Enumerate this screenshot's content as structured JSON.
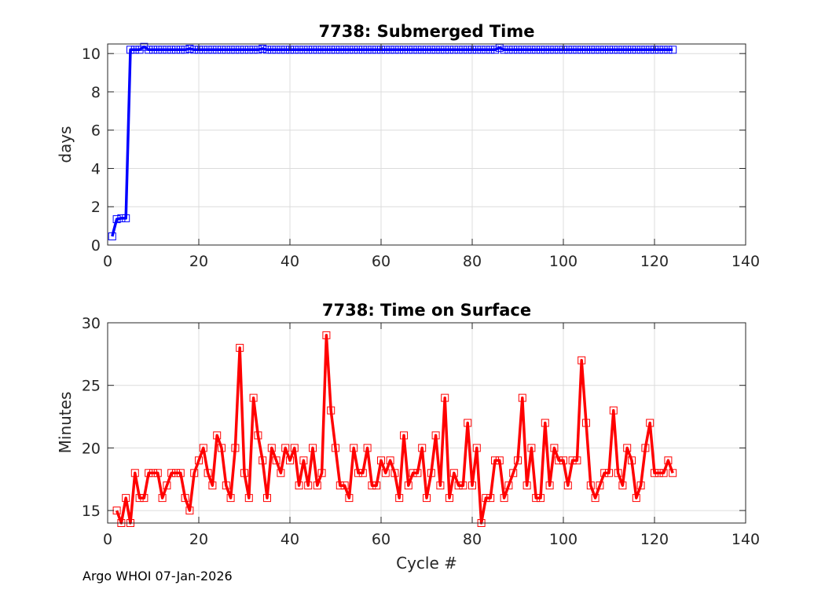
{
  "footer": "Argo WHOI 07-Jan-2026",
  "colors": {
    "top_series": "#0000ff",
    "bottom_series": "#ff0000",
    "grid": "#dcdcdc",
    "axis": "#262626"
  },
  "chart_data": [
    {
      "type": "line",
      "title": "7738: Submerged Time",
      "xlabel": "",
      "ylabel": "days",
      "xlim": [
        0,
        140
      ],
      "ylim": [
        0,
        10.5
      ],
      "xticks": [
        0,
        20,
        40,
        60,
        80,
        100,
        120,
        140
      ],
      "yticks": [
        0,
        2,
        4,
        6,
        8,
        10
      ],
      "grid": true,
      "marker": "square",
      "series": [
        {
          "name": "Submerged Time",
          "color": "#0000ff",
          "x": [
            1,
            2,
            3,
            4,
            5,
            6,
            7,
            8,
            9,
            10,
            11,
            12,
            13,
            14,
            15,
            16,
            17,
            18,
            19,
            20,
            21,
            22,
            23,
            24,
            25,
            26,
            27,
            28,
            29,
            30,
            31,
            32,
            33,
            34,
            35,
            36,
            37,
            38,
            39,
            40,
            41,
            42,
            43,
            44,
            45,
            46,
            47,
            48,
            49,
            50,
            51,
            52,
            53,
            54,
            55,
            56,
            57,
            58,
            59,
            60,
            61,
            62,
            63,
            64,
            65,
            66,
            67,
            68,
            69,
            70,
            71,
            72,
            73,
            74,
            75,
            76,
            77,
            78,
            79,
            80,
            81,
            82,
            83,
            84,
            85,
            86,
            87,
            88,
            89,
            90,
            91,
            92,
            93,
            94,
            95,
            96,
            97,
            98,
            99,
            100,
            101,
            102,
            103,
            104,
            105,
            106,
            107,
            108,
            109,
            110,
            111,
            112,
            113,
            114,
            115,
            116,
            117,
            118,
            119,
            120,
            121,
            122,
            123,
            124
          ],
          "y": [
            0.45,
            1.35,
            1.4,
            1.4,
            10.2,
            10.2,
            10.2,
            10.35,
            10.2,
            10.2,
            10.2,
            10.2,
            10.2,
            10.2,
            10.2,
            10.2,
            10.2,
            10.25,
            10.2,
            10.2,
            10.2,
            10.2,
            10.2,
            10.2,
            10.2,
            10.2,
            10.2,
            10.2,
            10.2,
            10.2,
            10.2,
            10.2,
            10.2,
            10.25,
            10.2,
            10.2,
            10.2,
            10.2,
            10.2,
            10.2,
            10.2,
            10.2,
            10.2,
            10.2,
            10.2,
            10.2,
            10.2,
            10.2,
            10.2,
            10.2,
            10.2,
            10.2,
            10.2,
            10.2,
            10.2,
            10.2,
            10.2,
            10.2,
            10.2,
            10.2,
            10.2,
            10.2,
            10.2,
            10.2,
            10.2,
            10.2,
            10.2,
            10.2,
            10.2,
            10.2,
            10.2,
            10.2,
            10.2,
            10.2,
            10.2,
            10.2,
            10.2,
            10.2,
            10.2,
            10.2,
            10.2,
            10.2,
            10.2,
            10.2,
            10.2,
            10.3,
            10.2,
            10.2,
            10.2,
            10.2,
            10.2,
            10.2,
            10.2,
            10.2,
            10.2,
            10.2,
            10.2,
            10.2,
            10.2,
            10.2,
            10.2,
            10.2,
            10.2,
            10.2,
            10.2,
            10.2,
            10.2,
            10.2,
            10.2,
            10.2,
            10.2,
            10.2,
            10.2,
            10.2,
            10.2,
            10.2,
            10.2,
            10.2,
            10.2,
            10.2,
            10.2,
            10.2,
            10.2,
            10.2
          ]
        }
      ]
    },
    {
      "type": "line",
      "title": "7738: Time on Surface",
      "xlabel": "Cycle #",
      "ylabel": "Minutes",
      "xlim": [
        0,
        140
      ],
      "ylim": [
        14,
        30
      ],
      "xticks": [
        0,
        20,
        40,
        60,
        80,
        100,
        120,
        140
      ],
      "yticks": [
        15,
        20,
        25,
        30
      ],
      "grid": true,
      "marker": "square",
      "series": [
        {
          "name": "Time on Surface",
          "color": "#ff0000",
          "x": [
            2,
            3,
            4,
            5,
            6,
            7,
            8,
            9,
            10,
            11,
            12,
            13,
            14,
            15,
            16,
            17,
            18,
            19,
            20,
            21,
            22,
            23,
            24,
            25,
            26,
            27,
            28,
            29,
            30,
            31,
            32,
            33,
            34,
            35,
            36,
            37,
            38,
            39,
            40,
            41,
            42,
            43,
            44,
            45,
            46,
            47,
            48,
            49,
            50,
            51,
            52,
            53,
            54,
            55,
            56,
            57,
            58,
            59,
            60,
            61,
            62,
            63,
            64,
            65,
            66,
            67,
            68,
            69,
            70,
            71,
            72,
            73,
            74,
            75,
            76,
            77,
            78,
            79,
            80,
            81,
            82,
            83,
            84,
            85,
            86,
            87,
            88,
            89,
            90,
            91,
            92,
            93,
            94,
            95,
            96,
            97,
            98,
            99,
            100,
            101,
            102,
            103,
            104,
            105,
            106,
            107,
            108,
            109,
            110,
            111,
            112,
            113,
            114,
            115,
            116,
            117,
            118,
            119,
            120,
            121,
            122,
            123,
            124
          ],
          "y": [
            15,
            14,
            16,
            14,
            18,
            16,
            16,
            18,
            18,
            18,
            16,
            17,
            18,
            18,
            18,
            16,
            15,
            18,
            19,
            20,
            18,
            17,
            21,
            20,
            17,
            16,
            20,
            28,
            18,
            16,
            24,
            21,
            19,
            16,
            20,
            19,
            18,
            20,
            19,
            20,
            17,
            19,
            17,
            20,
            17,
            18,
            29,
            23,
            20,
            17,
            17,
            16,
            20,
            18,
            18,
            20,
            17,
            17,
            19,
            18,
            19,
            18,
            16,
            21,
            17,
            18,
            18,
            20,
            16,
            18,
            21,
            17,
            24,
            16,
            18,
            17,
            17,
            22,
            17,
            20,
            14,
            16,
            16,
            19,
            19,
            16,
            17,
            18,
            19,
            24,
            17,
            20,
            16,
            16,
            22,
            17,
            20,
            19,
            19,
            17,
            19,
            19,
            27,
            22,
            17,
            16,
            17,
            18,
            18,
            23,
            18,
            17,
            20,
            19,
            16,
            17,
            20,
            22,
            18,
            18,
            18,
            19,
            18
          ]
        }
      ]
    }
  ]
}
